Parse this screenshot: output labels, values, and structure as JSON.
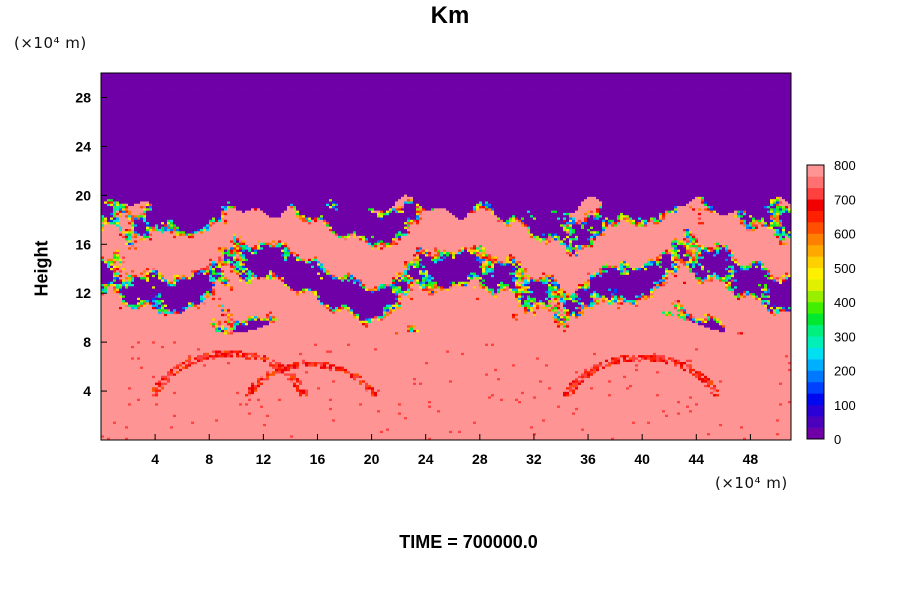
{
  "chart_data": {
    "type": "heatmap",
    "title": "Km",
    "xlabel": "",
    "ylabel": "Height",
    "x_unit": "(×10⁴ m)",
    "y_unit": "(×10⁴ m)",
    "footer": "TIME = 700000.0",
    "xlim": [
      0,
      51
    ],
    "ylim": [
      0,
      30
    ],
    "x_ticks": [
      4,
      8,
      12,
      16,
      20,
      24,
      28,
      32,
      36,
      40,
      44,
      48
    ],
    "y_ticks": [
      4,
      8,
      12,
      16,
      20,
      24,
      28
    ],
    "colorbar": {
      "min": 0,
      "max": 800,
      "ticks": [
        0,
        100,
        200,
        300,
        400,
        500,
        600,
        700,
        800
      ],
      "colors": [
        "#6f00a8",
        "#4a00bd",
        "#2a00d6",
        "#0008f0",
        "#0040ff",
        "#0078ff",
        "#00b0ff",
        "#00e0f0",
        "#00f0b8",
        "#00f080",
        "#00e830",
        "#40f000",
        "#98f000",
        "#e0f000",
        "#fff000",
        "#ffd000",
        "#ffa800",
        "#ff8000",
        "#ff5000",
        "#ff2000",
        "#f00000",
        "#ff4040",
        "#ff7070",
        "#ff9494"
      ]
    },
    "regions": {
      "upper_value": 0,
      "lower_value": 800,
      "turbulent_layer": [
        9.5,
        19.5
      ]
    }
  }
}
